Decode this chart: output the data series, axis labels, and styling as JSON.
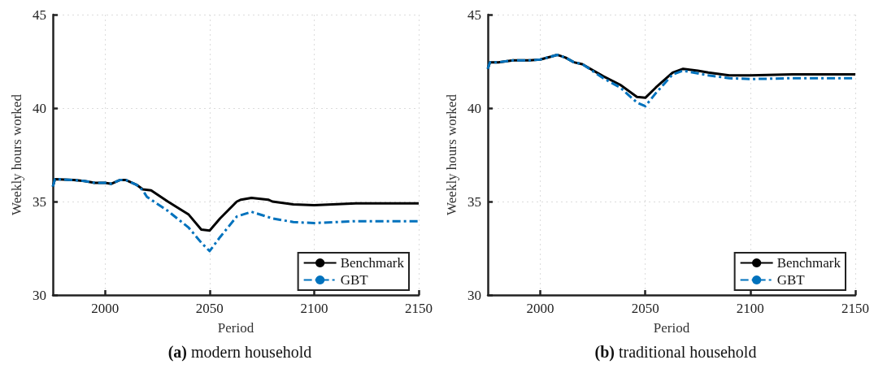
{
  "chart_data": [
    {
      "type": "line",
      "title": "(a) modern household",
      "xlabel": "Period",
      "ylabel": "Weekly hours worked",
      "xlim": [
        1975,
        2150
      ],
      "xticks": [
        2000,
        2050,
        2100,
        2150
      ],
      "ylim": [
        30,
        45
      ],
      "yticks": [
        30,
        35,
        40,
        45
      ],
      "grid": true,
      "legend": "bottom right",
      "marker": "none",
      "series": [
        {
          "name": "Benchmark",
          "color": "#000000",
          "line_style": "solid",
          "x": [
            1975,
            1976,
            1985,
            1990,
            1995,
            2000,
            2003,
            2007,
            2010,
            2015,
            2018,
            2022,
            2030,
            2040,
            2046,
            2050,
            2055,
            2063,
            2065,
            2070,
            2078,
            2080,
            2090,
            2100,
            2120,
            2150
          ],
          "values": [
            35.8,
            36.2,
            36.15,
            36.1,
            36.0,
            36.0,
            35.95,
            36.15,
            36.15,
            35.9,
            35.65,
            35.6,
            35.0,
            34.3,
            33.5,
            33.45,
            34.1,
            35.0,
            35.1,
            35.2,
            35.1,
            35.0,
            34.85,
            34.8,
            34.9,
            34.9
          ]
        },
        {
          "name": "GBT",
          "color": "#0072bd",
          "line_style": "dashed",
          "x": [
            1975,
            1976,
            1985,
            1990,
            1995,
            2000,
            2003,
            2007,
            2010,
            2015,
            2018,
            2020,
            2030,
            2040,
            2046,
            2050,
            2055,
            2063,
            2070,
            2080,
            2090,
            2100,
            2120,
            2150
          ],
          "values": [
            35.8,
            36.2,
            36.15,
            36.1,
            36.0,
            36.0,
            35.95,
            36.15,
            36.15,
            35.9,
            35.6,
            35.25,
            34.5,
            33.6,
            32.8,
            32.35,
            33.1,
            34.2,
            34.45,
            34.1,
            33.9,
            33.85,
            33.95,
            33.95
          ]
        }
      ]
    },
    {
      "type": "line",
      "title": "(b) traditional household",
      "xlabel": "Period",
      "ylabel": "Weekly hours worked",
      "xlim": [
        1975,
        2150
      ],
      "xticks": [
        2000,
        2050,
        2100,
        2150
      ],
      "ylim": [
        30,
        45
      ],
      "yticks": [
        30,
        35,
        40,
        45
      ],
      "grid": true,
      "legend": "bottom right",
      "marker": "none",
      "series": [
        {
          "name": "Benchmark",
          "color": "#000000",
          "line_style": "solid",
          "x": [
            1975,
            1976,
            1980,
            1987,
            1995,
            2000,
            2005,
            2008,
            2012,
            2016,
            2020,
            2030,
            2038,
            2046,
            2050,
            2055,
            2063,
            2068,
            2075,
            2080,
            2090,
            2100,
            2120,
            2150
          ],
          "values": [
            42.1,
            42.45,
            42.45,
            42.55,
            42.55,
            42.6,
            42.75,
            42.85,
            42.7,
            42.45,
            42.35,
            41.7,
            41.25,
            40.6,
            40.55,
            41.1,
            41.9,
            42.1,
            42.0,
            41.9,
            41.75,
            41.75,
            41.8,
            41.8
          ]
        },
        {
          "name": "GBT",
          "color": "#0072bd",
          "line_style": "dashed",
          "x": [
            1975,
            1976,
            1980,
            1987,
            1995,
            2000,
            2005,
            2008,
            2012,
            2016,
            2020,
            2030,
            2038,
            2046,
            2050,
            2055,
            2063,
            2068,
            2080,
            2090,
            2100,
            2120,
            2150
          ],
          "values": [
            42.1,
            42.45,
            42.45,
            42.55,
            42.55,
            42.6,
            42.75,
            42.85,
            42.7,
            42.45,
            42.35,
            41.6,
            41.1,
            40.3,
            40.1,
            40.8,
            41.8,
            42.0,
            41.75,
            41.6,
            41.55,
            41.6,
            41.6
          ]
        }
      ]
    }
  ]
}
